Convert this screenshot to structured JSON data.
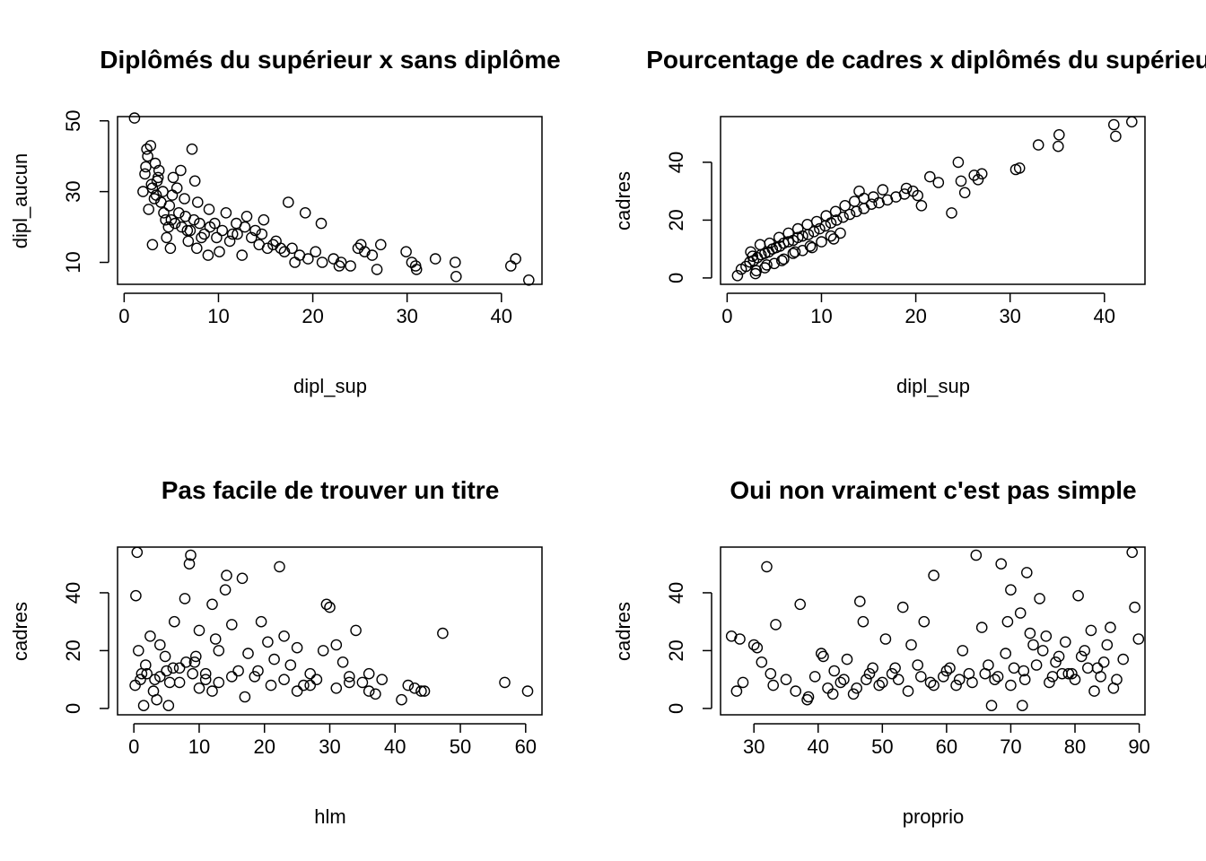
{
  "chart_data": [
    {
      "type": "scatter",
      "title": "Diplômés du supérieur x sans diplôme",
      "xlabel": "dipl_sup",
      "ylabel": "dipl_aucun",
      "xlim": [
        -0.7,
        44.3
      ],
      "ylim": [
        3.8,
        51.2
      ],
      "xticks": [
        0,
        10,
        20,
        30,
        40
      ],
      "yticks": [
        10,
        30,
        50
      ],
      "grid": false,
      "series": [
        {
          "x": [
            1.1,
            2.0,
            2.2,
            2.5,
            2.8,
            3.0,
            3.2,
            2.6,
            3.5,
            3.9,
            4.1,
            4.4,
            4.8,
            5.1,
            5.4,
            5.8,
            6.1,
            6.5,
            7.0,
            7.4,
            8.0,
            8.5,
            9.1,
            9.8,
            10.4,
            11.2,
            12.0,
            12.8,
            13.5,
            14.3,
            15.2,
            16.1,
            17.0,
            17.8,
            18.6,
            19.5,
            20.3,
            21.0,
            22.2,
            23.0,
            24.0,
            24.8,
            25.5,
            26.3,
            27.2,
            30.5,
            31.0,
            33.0,
            35.1,
            41.0,
            41.5,
            42.9,
            7.2,
            7.5,
            9.0,
            4.9,
            3.3,
            6.8,
            8.9,
            11.5,
            13.0,
            14.8,
            16.6,
            19.2,
            20.9,
            26.8,
            30.9,
            35.2,
            3.0,
            4.5,
            6.0,
            5.2,
            7.8,
            10.1,
            2.4,
            12.5,
            15.8,
            18.1,
            3.7,
            5.6,
            8.2,
            9.6,
            6.4,
            4.2,
            2.9,
            3.6,
            5.0,
            6.7,
            7.7,
            10.8,
            11.9,
            13.9,
            14.6,
            17.4,
            22.8,
            25.1,
            29.9,
            2.3,
            3.4,
            4.7
          ],
          "y": [
            50.8,
            30,
            35,
            40,
            43,
            31,
            28,
            25,
            33,
            27,
            30,
            22,
            26,
            29,
            21,
            24,
            20,
            23,
            19,
            22,
            21,
            18,
            20,
            17,
            19,
            16,
            18,
            20,
            17,
            15,
            14,
            16,
            13,
            14,
            12,
            11,
            13,
            10,
            11,
            10,
            9,
            14,
            13,
            12,
            15,
            10,
            8,
            11,
            10,
            9,
            11,
            5,
            42,
            33,
            25,
            14,
            38,
            16,
            12,
            18,
            23,
            22,
            14,
            24,
            21,
            8,
            9,
            6,
            15,
            17,
            36,
            34,
            27,
            13,
            42,
            12,
            15,
            10,
            36,
            31,
            17,
            21,
            28,
            24,
            32,
            34,
            22,
            19,
            14,
            24,
            21,
            19,
            18,
            27,
            9,
            15,
            13,
            37,
            29,
            20
          ]
        }
      ]
    },
    {
      "type": "scatter",
      "title": "Pourcentage de cadres x diplômés du supérieur",
      "xlabel": "dipl_sup",
      "ylabel": "cadres",
      "xlim": [
        -0.7,
        44.3
      ],
      "ylim": [
        -2.2,
        55.8
      ],
      "xticks": [
        0,
        10,
        20,
        30,
        40
      ],
      "yticks": [
        0,
        20,
        40
      ],
      "grid": false,
      "series": [
        {
          "x": [
            1.1,
            1.5,
            2.0,
            2.4,
            2.8,
            3.2,
            3.6,
            4.0,
            4.4,
            4.8,
            5.2,
            5.6,
            6.0,
            6.5,
            7.0,
            7.5,
            8.0,
            8.6,
            9.2,
            9.8,
            10.4,
            11.0,
            11.6,
            12.3,
            13.0,
            13.7,
            14.5,
            15.3,
            16.1,
            17.0,
            17.9,
            18.8,
            19.7,
            20.6,
            21.5,
            22.4,
            23.8,
            24.5,
            25.2,
            26.2,
            27.0,
            30.6,
            31.0,
            33.0,
            35.1,
            35.2,
            41.0,
            41.2,
            42.9,
            3.0,
            4.0,
            5.0,
            6.0,
            7.0,
            8.0,
            9.0,
            10.0,
            11.0,
            12.0,
            2.5,
            3.5,
            4.5,
            5.5,
            6.5,
            7.5,
            8.5,
            9.5,
            10.5,
            11.5,
            12.5,
            13.5,
            14.5,
            15.5,
            16.5,
            19.0,
            20.2,
            24.8,
            26.6,
            14.0,
            11.3,
            2.7,
            4.2,
            5.8,
            7.2,
            8.8,
            3.1
          ],
          "y": [
            0.8,
            3.0,
            4.0,
            5.5,
            6.0,
            7.0,
            8.0,
            8.5,
            9.0,
            10.0,
            10.5,
            11.0,
            12.0,
            12.5,
            13.0,
            14.0,
            14.5,
            15.0,
            16.0,
            17.0,
            18.0,
            19.0,
            20.0,
            21.0,
            22.0,
            23.0,
            24.0,
            25.5,
            26.0,
            27.0,
            28.0,
            29.0,
            30.0,
            25.0,
            35.0,
            33.0,
            22.5,
            40.0,
            29.5,
            35.5,
            36.0,
            37.5,
            38.0,
            46.0,
            45.5,
            49.5,
            53.0,
            49.0,
            54.0,
            1.5,
            3.5,
            5.0,
            6.5,
            8.5,
            9.5,
            10.5,
            12.5,
            14.5,
            15.5,
            9.0,
            11.5,
            12.0,
            14.0,
            15.5,
            17.0,
            18.5,
            19.5,
            21.5,
            23.0,
            25.0,
            26.5,
            27.5,
            28.0,
            30.5,
            31.0,
            28.5,
            33.5,
            34.0,
            30.0,
            13.5,
            7.5,
            4.5,
            6.0,
            9.0,
            11.0,
            2.5
          ]
        }
      ]
    },
    {
      "type": "scatter",
      "title": "Pas facile de trouver un titre",
      "xlabel": "hlm",
      "ylabel": "cadres",
      "xlim": [
        -2.5,
        62.5
      ],
      "ylim": [
        -2.2,
        55.8
      ],
      "xticks": [
        0,
        10,
        20,
        30,
        40,
        50,
        60
      ],
      "yticks": [
        0,
        20,
        40
      ],
      "grid": false,
      "series": [
        {
          "x": [
            0.5,
            0.3,
            0.7,
            1.2,
            1.8,
            2.5,
            3.2,
            4.0,
            4.8,
            5.5,
            6.2,
            7.0,
            7.8,
            8.5,
            8.7,
            9.3,
            10.0,
            11.0,
            12.0,
            13.0,
            14.0,
            14.2,
            15.0,
            16.0,
            16.6,
            17.5,
            18.5,
            19.5,
            20.5,
            21.5,
            22.3,
            23.0,
            24.0,
            25.0,
            26.0,
            27.0,
            28.0,
            29.0,
            29.5,
            30.0,
            31.0,
            32.0,
            33.0,
            34.0,
            35.0,
            36.0,
            37.0,
            38.0,
            41.0,
            42.0,
            43.0,
            44.0,
            44.5,
            47.3,
            56.8,
            60.3,
            0.2,
            1.0,
            2.0,
            3.0,
            4.0,
            5.0,
            6.0,
            7.0,
            8.0,
            9.0,
            10.0,
            11.0,
            12.0,
            13.0,
            15.0,
            17.0,
            19.0,
            21.0,
            23.0,
            25.0,
            27.0,
            31.0,
            33.0,
            36.0,
            5.3,
            3.5,
            9.5,
            12.5,
            1.5
          ],
          "y": [
            54,
            39,
            20,
            12,
            15,
            25,
            10,
            22,
            18,
            9,
            30,
            14,
            38,
            50,
            53,
            16,
            27,
            12,
            36,
            20,
            41,
            46,
            29,
            13,
            45,
            19,
            11,
            30,
            23,
            17,
            49,
            25,
            15,
            21,
            8,
            12,
            10,
            20,
            36,
            35,
            7,
            16,
            11,
            27,
            9,
            12,
            5,
            10,
            3,
            8,
            7,
            6,
            6,
            26,
            9,
            6,
            8,
            10,
            12,
            6,
            11,
            13,
            14,
            9,
            16,
            12,
            7,
            10,
            6,
            9,
            11,
            4,
            13,
            8,
            10,
            6,
            8,
            22,
            9,
            6,
            1,
            3,
            18,
            24,
            1
          ]
        }
      ]
    },
    {
      "type": "scatter",
      "title": "Oui non vraiment c'est pas simple",
      "xlabel": "proprio",
      "ylabel": "cadres",
      "xlim": [
        24.8,
        90.9
      ],
      "ylim": [
        -2.2,
        55.8
      ],
      "xticks": [
        30,
        40,
        50,
        60,
        70,
        80,
        90
      ],
      "yticks": [
        0,
        20,
        40
      ],
      "grid": false,
      "series": [
        {
          "x": [
            26.5,
            27.3,
            27.8,
            28.3,
            30.0,
            31.2,
            32.0,
            32.6,
            33.4,
            33.0,
            35.0,
            37.2,
            38.5,
            39.5,
            40.5,
            41.5,
            42.5,
            43.5,
            44.5,
            45.5,
            46.5,
            47.0,
            47.5,
            48.5,
            49.5,
            50.5,
            51.5,
            52.5,
            53.2,
            54.5,
            55.5,
            56.5,
            57.5,
            58.0,
            59.5,
            60.5,
            61.5,
            62.5,
            63.5,
            64.6,
            65.5,
            66.5,
            67.5,
            68.5,
            69.2,
            70.0,
            70.5,
            71.5,
            72.2,
            72.5,
            73.5,
            74.5,
            75.5,
            76.5,
            77.5,
            78.5,
            79.5,
            80.5,
            81.5,
            82.5,
            83.5,
            84.5,
            85.5,
            86.5,
            87.5,
            88.9,
            89.3,
            89.9,
            30.5,
            36.5,
            38.3,
            40.8,
            42.3,
            44.0,
            46.0,
            48.0,
            50.0,
            52.0,
            54.0,
            56.0,
            58.0,
            60.0,
            62.0,
            64.0,
            66.0,
            68.0,
            70.0,
            72.0,
            74.0,
            76.0,
            78.0,
            80.0,
            82.0,
            84.0,
            86.0,
            67.0,
            69.5,
            71.8,
            73.0,
            75.0,
            77.0,
            79.0,
            81.0,
            83.0,
            85.0
          ],
          "y": [
            25,
            6,
            24,
            9,
            22,
            16,
            49,
            12,
            29,
            8,
            10,
            36,
            4,
            11,
            19,
            7,
            13,
            9,
            17,
            5,
            37,
            30,
            10,
            14,
            8,
            24,
            12,
            10,
            35,
            22,
            15,
            30,
            9,
            46,
            11,
            14,
            8,
            20,
            12,
            53,
            28,
            15,
            10,
            50,
            19,
            41,
            14,
            33,
            10,
            47,
            22,
            38,
            25,
            11,
            18,
            23,
            12,
            39,
            20,
            27,
            14,
            16,
            28,
            10,
            17,
            54,
            35,
            24,
            21,
            6,
            3,
            18,
            5,
            10,
            7,
            12,
            9,
            14,
            6,
            11,
            8,
            13,
            10,
            9,
            12,
            11,
            8,
            13,
            15,
            9,
            12,
            10,
            14,
            11,
            7,
            1,
            30,
            1,
            26,
            20,
            16,
            12,
            18,
            6,
            22
          ]
        }
      ]
    }
  ]
}
